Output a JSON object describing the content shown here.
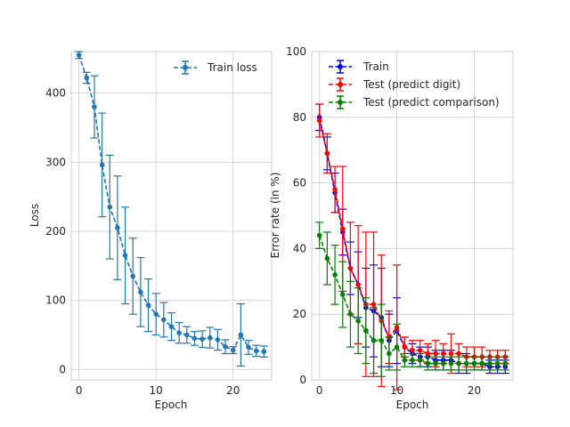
{
  "chart_data": [
    {
      "type": "line",
      "xlabel": "Epoch",
      "ylabel": "Loss",
      "xlim": [
        -1,
        25
      ],
      "ylim": [
        -15,
        460
      ],
      "xticks": [
        0,
        10,
        20
      ],
      "yticks": [
        0,
        100,
        200,
        300,
        400
      ],
      "grid": true,
      "legend_position": "top-right",
      "series": [
        {
          "name": "Train loss",
          "color": "#1f77b4",
          "linestyle": "dashed",
          "marker": "circle",
          "x": [
            0,
            1,
            2,
            3,
            4,
            5,
            6,
            7,
            8,
            9,
            10,
            11,
            12,
            13,
            14,
            15,
            16,
            17,
            18,
            19,
            20,
            21,
            22,
            23,
            24
          ],
          "y": [
            455,
            422,
            380,
            296,
            235,
            205,
            165,
            135,
            112,
            93,
            80,
            72,
            62,
            53,
            50,
            45,
            44,
            46,
            43,
            33,
            28,
            50,
            32,
            27,
            26
          ],
          "err": [
            5,
            8,
            45,
            75,
            75,
            75,
            70,
            55,
            50,
            38,
            30,
            25,
            20,
            15,
            12,
            10,
            12,
            15,
            15,
            10,
            5,
            45,
            10,
            8,
            8
          ]
        }
      ]
    },
    {
      "type": "line",
      "xlabel": "Epoch",
      "ylabel": "Error rate (in %)",
      "xlim": [
        -1,
        25
      ],
      "ylim": [
        0,
        100
      ],
      "xticks": [
        0,
        10,
        20
      ],
      "yticks": [
        0,
        20,
        40,
        60,
        80,
        100
      ],
      "grid": true,
      "legend_position": "top-left",
      "series": [
        {
          "name": "Train",
          "color": "#0000ff",
          "linestyle": "dashed",
          "marker": "circle",
          "x": [
            0,
            1,
            2,
            3,
            4,
            5,
            6,
            7,
            8,
            9,
            10,
            11,
            12,
            13,
            14,
            15,
            16,
            17,
            18,
            19,
            20,
            21,
            22,
            23,
            24
          ],
          "y": [
            80,
            69,
            57,
            45,
            34,
            29,
            22,
            21,
            19,
            12,
            15,
            10,
            8,
            7,
            7,
            6,
            6,
            6,
            5,
            5,
            5,
            5,
            4,
            4,
            4
          ],
          "err": [
            4,
            5,
            6,
            7,
            8,
            10,
            12,
            14,
            15,
            8,
            10,
            3,
            3,
            3,
            3,
            3,
            3,
            3,
            3,
            3,
            2,
            2,
            2,
            2,
            2
          ]
        },
        {
          "name": "Test (predict digit)",
          "color": "#ff0000",
          "linestyle": "dashed",
          "marker": "circle",
          "x": [
            0,
            1,
            2,
            3,
            4,
            5,
            6,
            7,
            8,
            9,
            10,
            11,
            12,
            13,
            14,
            15,
            16,
            17,
            18,
            19,
            20,
            21,
            22,
            23,
            24
          ],
          "y": [
            79,
            69,
            58,
            46,
            34,
            29,
            23,
            23,
            18,
            13,
            16,
            10,
            9,
            9,
            8,
            8,
            8,
            8,
            8,
            7,
            7,
            7,
            7,
            7,
            7
          ],
          "err": [
            5,
            6,
            7,
            19,
            14,
            18,
            22,
            22,
            20,
            8,
            19,
            3,
            3,
            3,
            3,
            4,
            3,
            6,
            3,
            3,
            3,
            3,
            2,
            2,
            2
          ]
        },
        {
          "name": "Test (predict comparison)",
          "color": "#008000",
          "linestyle": "dashed",
          "marker": "circle",
          "x": [
            0,
            1,
            2,
            3,
            4,
            5,
            6,
            7,
            8,
            9,
            10,
            11,
            12,
            13,
            14,
            15,
            16,
            17,
            18,
            19,
            20,
            21,
            22,
            23,
            24
          ],
          "y": [
            44,
            37,
            32,
            26,
            20,
            18,
            15,
            12,
            12,
            8,
            10,
            6,
            6,
            6,
            5,
            5,
            5,
            5,
            5,
            5,
            5,
            5,
            5,
            5,
            5
          ],
          "err": [
            4,
            8,
            9,
            10,
            10,
            10,
            10,
            10,
            11,
            5,
            7,
            2,
            2,
            2,
            2,
            2,
            2,
            2,
            2,
            2,
            2,
            2,
            2,
            2,
            2
          ]
        }
      ]
    }
  ]
}
